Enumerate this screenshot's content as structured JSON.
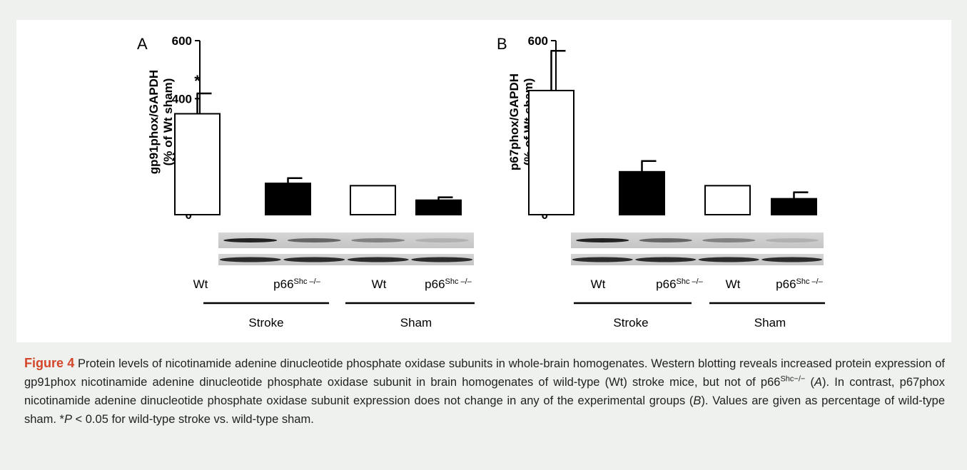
{
  "figure": {
    "label": "Figure 4",
    "caption": {
      "p1": " Protein levels of nicotinamide adenine dinucleotide phosphate oxidase subunits in whole-brain homogenates. Western blotting reveals increased protein expression of gp91phox nicotinamide adenine dinucleotide phosphate oxidase subunit in brain homogenates of wild-type (Wt) stroke mice, but not of p66",
      "sup": "Shc−/−",
      "p2": " (",
      "ref_a": "A",
      "p3": "). In contrast, p67phox nicotinamide adenine dinucleotide phosphate oxidase subunit expression does not change in any of the experimental groups (",
      "ref_b": "B",
      "p4": "). Values are given as percentage of wild-type sham. *",
      "p_sym": "P",
      "p5": " < 0.05 for wild-type stroke vs. wild-type sham."
    }
  },
  "colors": {
    "filled_bar": "#000000",
    "open_bar": "#ffffff",
    "caption_label": "#d4462a",
    "background": "#eef1ee"
  },
  "chart_data": [
    {
      "type": "bar",
      "panel": "A",
      "ylabel_line1": "gp91phox/GAPDH",
      "ylabel_line2": "(% of Wt sham)",
      "ylim": [
        0,
        600
      ],
      "yticks": [
        0,
        200,
        400,
        600
      ],
      "categories": [
        "Wt",
        "p66",
        "Wt",
        "p66"
      ],
      "category_sup": [
        "",
        "Shc –/–",
        "",
        "Shc –/–"
      ],
      "fills": [
        "open",
        "filled",
        "open",
        "filled"
      ],
      "values": [
        348,
        108,
        100,
        50
      ],
      "errors": [
        70,
        18,
        0,
        10
      ],
      "annotations": [
        "*",
        "",
        "",
        ""
      ],
      "groups": [
        {
          "label": "Stroke",
          "span": [
            0,
            1
          ]
        },
        {
          "label": "Sham",
          "span": [
            2,
            3
          ]
        }
      ]
    },
    {
      "type": "bar",
      "panel": "B",
      "ylabel_line1": "p67phox/GAPDH",
      "ylabel_line2": "(% of Wt sham)",
      "ylim": [
        0,
        600
      ],
      "yticks": [
        0,
        200,
        400,
        600
      ],
      "categories": [
        "Wt",
        "p66",
        "Wt",
        "p66"
      ],
      "category_sup": [
        "",
        "Shc –/–",
        "",
        "Shc –/–"
      ],
      "fills": [
        "open",
        "filled",
        "open",
        "filled"
      ],
      "values": [
        428,
        148,
        100,
        55
      ],
      "errors": [
        137,
        37,
        0,
        22
      ],
      "annotations": [
        "",
        "",
        "",
        ""
      ],
      "groups": [
        {
          "label": "Stroke",
          "span": [
            0,
            1
          ]
        },
        {
          "label": "Sham",
          "span": [
            2,
            3
          ]
        }
      ]
    }
  ]
}
